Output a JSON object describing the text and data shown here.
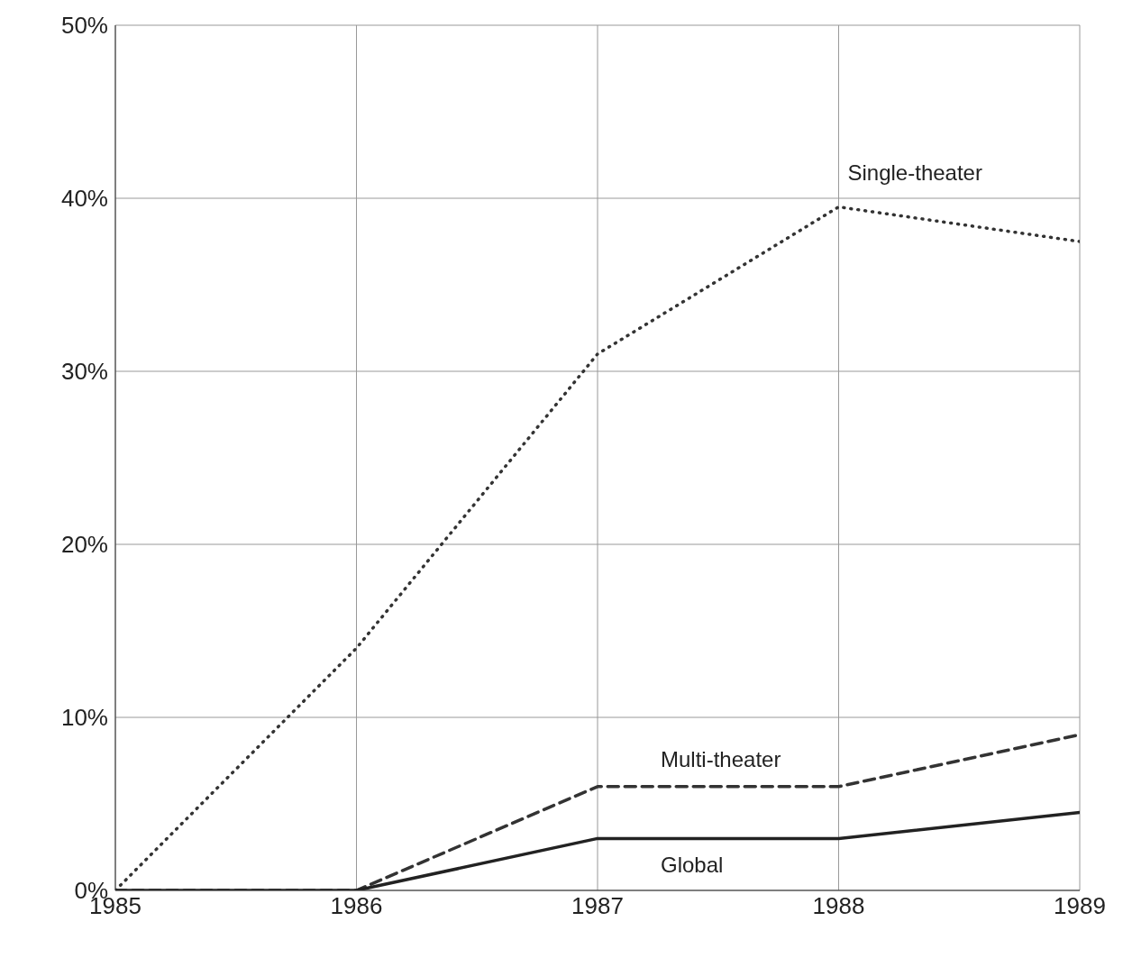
{
  "chart_data": {
    "type": "line",
    "x": [
      1985,
      1986,
      1987,
      1988,
      1989
    ],
    "series": [
      {
        "name": "Single-theater",
        "color": "#333333",
        "line_style": "dotted",
        "values": [
          0,
          14,
          31,
          39.5,
          37.5
        ]
      },
      {
        "name": "Multi-theater",
        "color": "#333333",
        "line_style": "dashed",
        "values": [
          0,
          0,
          6,
          6,
          9
        ]
      },
      {
        "name": "Global",
        "color": "#222222",
        "line_style": "solid",
        "values": [
          0,
          0,
          3,
          3,
          4.5
        ]
      }
    ],
    "xlim": [
      1985,
      1989
    ],
    "xticks": [
      1985,
      1986,
      1987,
      1988,
      1989
    ],
    "ylim": [
      0,
      50
    ],
    "yticks": [
      {
        "value": 0,
        "label": "0%"
      },
      {
        "value": 10,
        "label": "10%"
      },
      {
        "value": 20,
        "label": "20%"
      },
      {
        "value": 30,
        "label": "30%"
      },
      {
        "value": 40,
        "label": "40%"
      },
      {
        "value": 50,
        "label": "50%"
      }
    ],
    "grid": true,
    "marker": "none"
  }
}
